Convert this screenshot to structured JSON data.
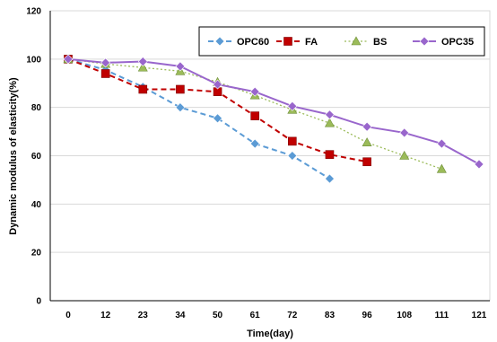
{
  "chart_data": {
    "type": "line",
    "categories": [
      "0",
      "12",
      "23",
      "34",
      "50",
      "61",
      "72",
      "83",
      "96",
      "108",
      "111",
      "121"
    ],
    "xlabel": "Time(day)",
    "ylabel": "Dynamic modulus of elasticity(%)",
    "ylim": [
      0,
      120
    ],
    "yticks": [
      0,
      20,
      40,
      60,
      80,
      100,
      120
    ],
    "grid": true,
    "legend_position": "top-right",
    "series": [
      {
        "name": "OPC60",
        "color": "#5b9bd5",
        "marker": "diamond",
        "dash": "dashed",
        "values": [
          100,
          95.5,
          88.5,
          80,
          75.5,
          65,
          60,
          50.5,
          null,
          null,
          null,
          null
        ]
      },
      {
        "name": "FA",
        "color": "#c00000",
        "marker": "square",
        "dash": "dashed",
        "values": [
          100,
          94,
          87.5,
          87.5,
          86.5,
          76.5,
          66,
          60.5,
          57.5,
          null,
          null,
          null
        ]
      },
      {
        "name": "BS",
        "color": "#9bbb59",
        "marker": "triangle",
        "dash": "dotted",
        "values": [
          100,
          98,
          96.5,
          95,
          90.5,
          85,
          79,
          73.5,
          65.5,
          60,
          54.5,
          null
        ]
      },
      {
        "name": "OPC35",
        "color": "#9966cc",
        "marker": "diamond",
        "dash": "solid",
        "values": [
          100,
          98.5,
          99,
          97,
          89.5,
          86.5,
          80.5,
          77,
          72,
          69.5,
          65,
          56.5
        ]
      }
    ]
  }
}
